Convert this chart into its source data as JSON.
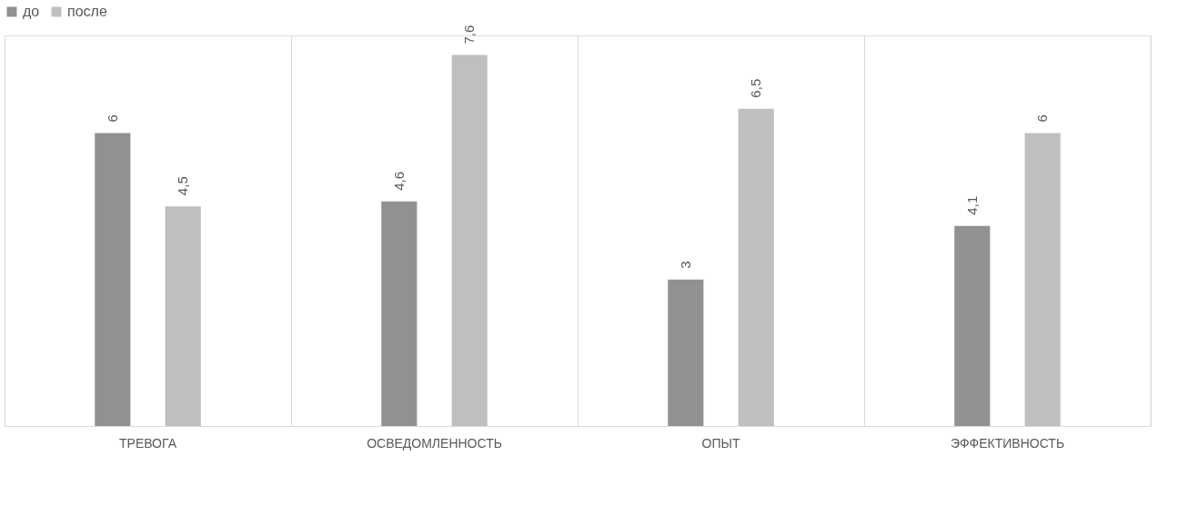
{
  "chart_data": {
    "type": "bar",
    "categories": [
      "ТРЕВОГА",
      "ОСВЕДОМЛЕННОСТЬ",
      "ОПЫТ",
      "ЭФФЕКТИВНОСТЬ"
    ],
    "series": [
      {
        "name": "до",
        "color": "#919191",
        "values": [
          6,
          4.6,
          3,
          4.1
        ],
        "value_labels": [
          "6",
          "4,6",
          "3",
          "4,1"
        ]
      },
      {
        "name": "после",
        "color": "#bfbfbf",
        "values": [
          4.5,
          7.6,
          6.5,
          6
        ],
        "value_labels": [
          "4,5",
          "7,6",
          "6,5",
          "6"
        ]
      }
    ],
    "ylim": [
      0,
      8
    ],
    "grid": "x",
    "legend": "top",
    "tick_labels": "x"
  }
}
